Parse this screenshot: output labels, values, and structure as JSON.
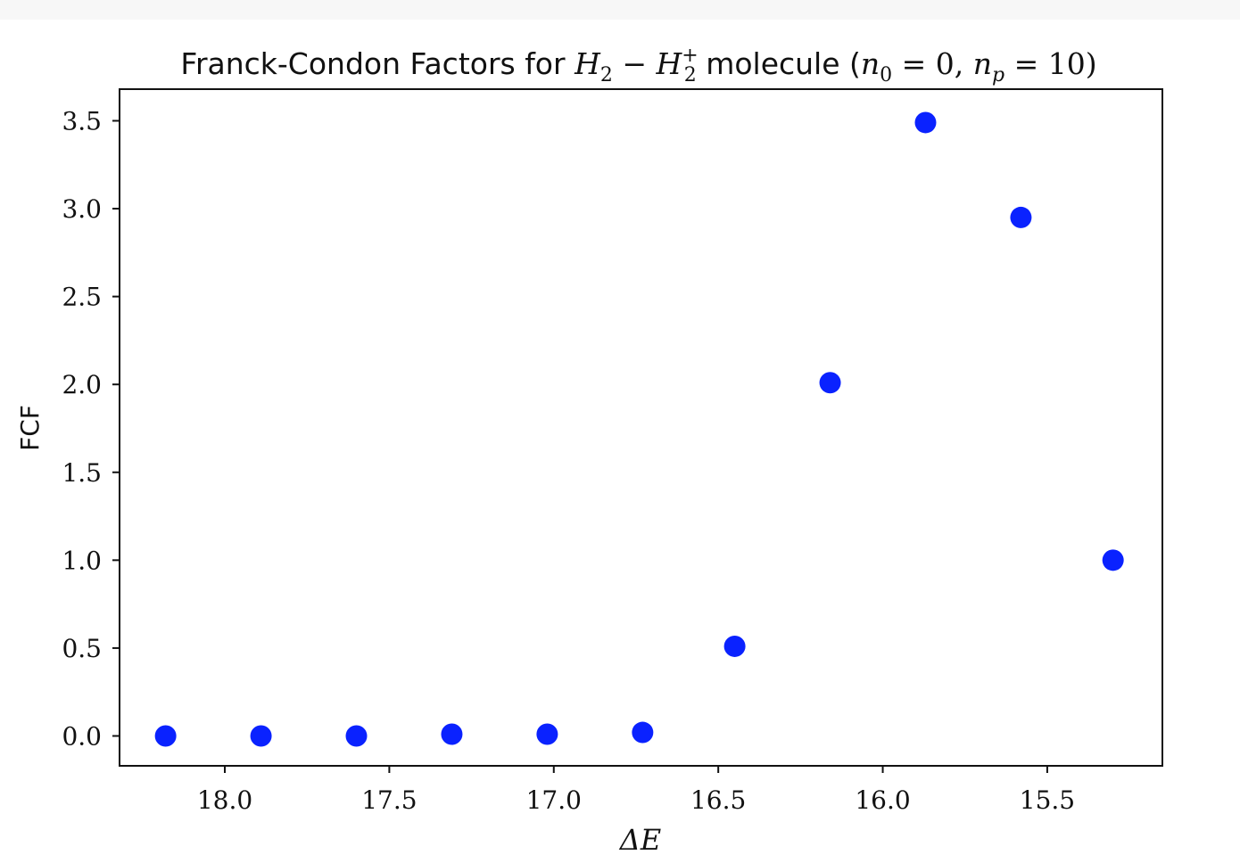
{
  "chart_data": {
    "type": "scatter",
    "title": {
      "prefix": "Franck-Condon Factors for ",
      "mol_a": "H",
      "mol_a_sub": "2",
      "minus": " − ",
      "mol_b": "H",
      "mol_b_sub": "2",
      "mol_b_sup": "+",
      "middle": " molecule (",
      "n0": "n",
      "n0_sub": "0",
      "n0_eq": " = 0, ",
      "np": "n",
      "np_sub": "p",
      "np_eq": " = 10)"
    },
    "xlabel": "ΔE",
    "ylabel": "FCF",
    "xlim": [
      18.32,
      15.15
    ],
    "ylim": [
      -0.17,
      3.68
    ],
    "x_inverted": true,
    "xticks": [
      18.0,
      17.5,
      17.0,
      16.5,
      16.0,
      15.5
    ],
    "xtick_labels": [
      "18.0",
      "17.5",
      "17.0",
      "16.5",
      "16.0",
      "15.5"
    ],
    "yticks": [
      0.0,
      0.5,
      1.0,
      1.5,
      2.0,
      2.5,
      3.0,
      3.5
    ],
    "ytick_labels": [
      "0.0",
      "0.5",
      "1.0",
      "1.5",
      "2.0",
      "2.5",
      "3.0",
      "3.5"
    ],
    "grid": false,
    "marker_color": "#0a22ff",
    "series": [
      {
        "x": [
          18.18,
          17.89,
          17.6,
          17.31,
          17.02,
          16.73,
          16.45,
          16.16,
          15.87,
          15.58,
          15.3
        ],
        "y": [
          0.0,
          0.0,
          0.0,
          0.01,
          0.01,
          0.02,
          0.51,
          2.01,
          3.49,
          2.95,
          1.0
        ]
      }
    ]
  }
}
